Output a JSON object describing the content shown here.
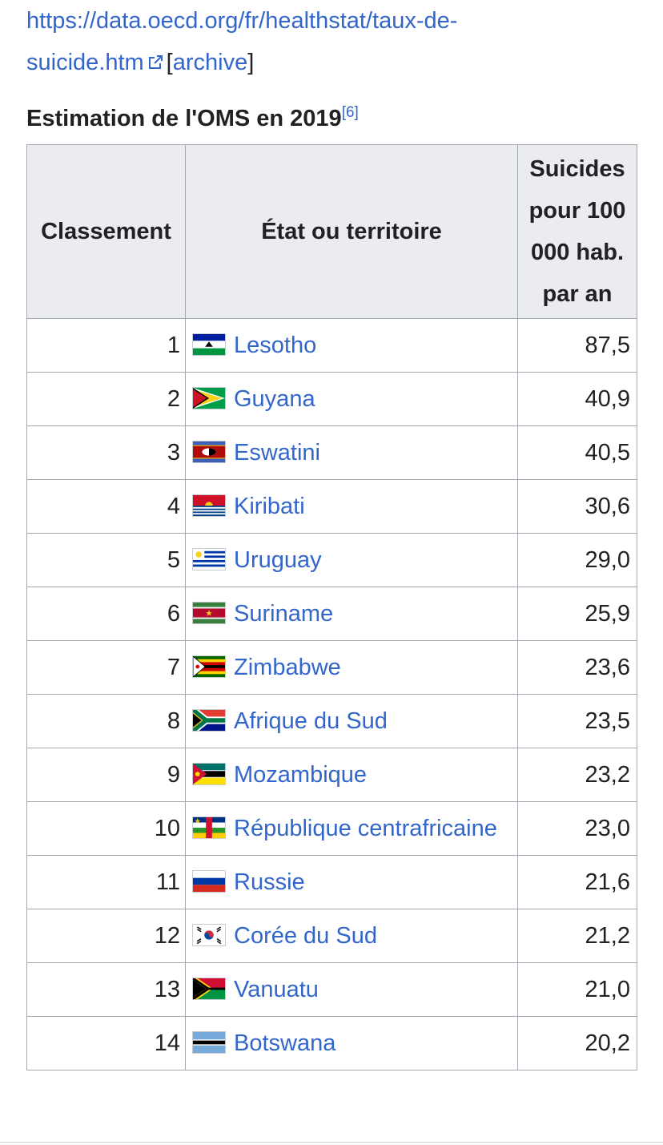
{
  "reference": {
    "url_line1": "https://data.oecd.org/fr/healthstat/taux-de-",
    "url_line2": "suicide.htm",
    "archive_open": "[",
    "archive_label": "archive",
    "archive_close": "]"
  },
  "caption": {
    "title": "Estimation de l'OMS en 2019",
    "citation": "[6]"
  },
  "table": {
    "headers": {
      "rank": "Classement",
      "country": "État ou territoire",
      "rate": "Suicides pour 100 000 hab. par an"
    },
    "rows": [
      {
        "rank": "1",
        "country": "Lesotho",
        "flag": "lesotho-flag-icon",
        "rate": "87,5"
      },
      {
        "rank": "2",
        "country": "Guyana",
        "flag": "guyana-flag-icon",
        "rate": "40,9"
      },
      {
        "rank": "3",
        "country": "Eswatini",
        "flag": "eswatini-flag-icon",
        "rate": "40,5"
      },
      {
        "rank": "4",
        "country": "Kiribati",
        "flag": "kiribati-flag-icon",
        "rate": "30,6"
      },
      {
        "rank": "5",
        "country": "Uruguay",
        "flag": "uruguay-flag-icon",
        "rate": "29,0"
      },
      {
        "rank": "6",
        "country": "Suriname",
        "flag": "suriname-flag-icon",
        "rate": "25,9"
      },
      {
        "rank": "7",
        "country": "Zimbabwe",
        "flag": "zimbabwe-flag-icon",
        "rate": "23,6"
      },
      {
        "rank": "8",
        "country": "Afrique du Sud",
        "flag": "south-africa-flag-icon",
        "rate": "23,5"
      },
      {
        "rank": "9",
        "country": "Mozambique",
        "flag": "mozambique-flag-icon",
        "rate": "23,2"
      },
      {
        "rank": "10",
        "country": "République centrafricaine",
        "flag": "central-african-republic-flag-icon",
        "rate": "23,0"
      },
      {
        "rank": "11",
        "country": "Russie",
        "flag": "russia-flag-icon",
        "rate": "21,6"
      },
      {
        "rank": "12",
        "country": "Corée du Sud",
        "flag": "south-korea-flag-icon",
        "rate": "21,2"
      },
      {
        "rank": "13",
        "country": "Vanuatu",
        "flag": "vanuatu-flag-icon",
        "rate": "21,0"
      },
      {
        "rank": "14",
        "country": "Botswana",
        "flag": "botswana-flag-icon",
        "rate": "20,2"
      }
    ]
  },
  "colors": {
    "link": "#3366cc",
    "header_bg": "#eaecf0",
    "border": "#a2a9b1"
  }
}
